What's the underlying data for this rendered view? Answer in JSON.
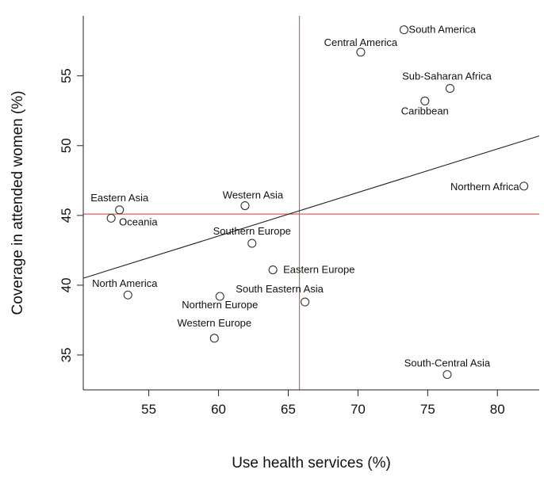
{
  "chart_data": {
    "type": "scatter",
    "title": "",
    "xlabel": "Use health services (%)",
    "ylabel": "Coverage in attended women (%)",
    "xlim": [
      50.3,
      83.0
    ],
    "ylim": [
      32.5,
      59.3
    ],
    "xticks": [
      55,
      60,
      65,
      70,
      75,
      80
    ],
    "yticks": [
      35,
      40,
      45,
      50,
      55
    ],
    "grid": false,
    "points": [
      {
        "label": "South America",
        "x": 73.3,
        "y": 58.3
      },
      {
        "label": "Central America",
        "x": 70.2,
        "y": 56.7
      },
      {
        "label": "Sub-Saharan Africa",
        "x": 76.6,
        "y": 54.1
      },
      {
        "label": "Caribbean",
        "x": 74.8,
        "y": 53.2
      },
      {
        "label": "Northern Africa",
        "x": 81.9,
        "y": 47.1
      },
      {
        "label": "Eastern Asia",
        "x": 52.9,
        "y": 45.4
      },
      {
        "label": "Oceania",
        "x": 52.3,
        "y": 44.8
      },
      {
        "label": "Western Asia",
        "x": 61.9,
        "y": 45.7
      },
      {
        "label": "Southern Europe",
        "x": 62.4,
        "y": 43.0
      },
      {
        "label": "Eastern Europe",
        "x": 63.9,
        "y": 41.1
      },
      {
        "label": "North America",
        "x": 53.5,
        "y": 39.3
      },
      {
        "label": "Northern Europe",
        "x": 60.1,
        "y": 39.2
      },
      {
        "label": "South Eastern Asia",
        "x": 66.2,
        "y": 38.8
      },
      {
        "label": "Western Europe",
        "x": 59.7,
        "y": 36.2
      },
      {
        "label": "South-Central Asia",
        "x": 76.4,
        "y": 33.6
      }
    ],
    "reference_lines": {
      "x": 65.8,
      "y": 45.1,
      "color": "#cc6666"
    },
    "trend_line": {
      "x": [
        50.3,
        83.0
      ],
      "y": [
        40.5,
        50.7
      ],
      "color": "#222222"
    }
  }
}
